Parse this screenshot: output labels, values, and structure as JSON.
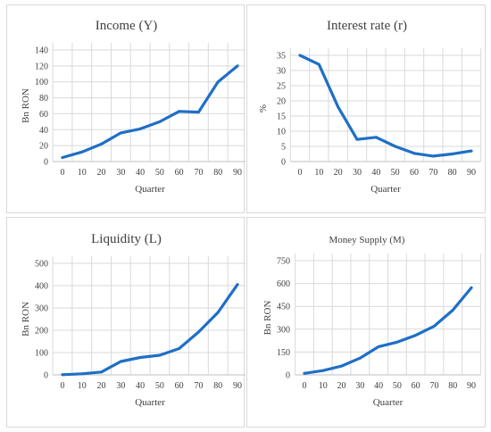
{
  "chart_data": [
    {
      "type": "line",
      "title": "Income (Y)",
      "xlabel": "Quarter",
      "ylabel": "Bn RON",
      "x": [
        0,
        10,
        20,
        30,
        40,
        50,
        60,
        70,
        80,
        90
      ],
      "y": [
        5,
        12,
        22,
        36,
        41,
        50,
        63,
        62,
        100,
        120
      ],
      "xticks": [
        0,
        10,
        20,
        30,
        40,
        50,
        60,
        70,
        80,
        90
      ],
      "yticks": [
        0,
        20,
        40,
        60,
        80,
        100,
        120,
        140
      ],
      "ylim": [
        0,
        140
      ],
      "grid": true,
      "color": "#1f6fc5"
    },
    {
      "type": "line",
      "title": "Interest rate (r)",
      "xlabel": "Quarter",
      "ylabel": "%",
      "x": [
        0,
        10,
        20,
        30,
        40,
        50,
        60,
        70,
        80,
        90
      ],
      "y": [
        35,
        32,
        18,
        7.3,
        8,
        5,
        2.7,
        1.8,
        2.5,
        3.5
      ],
      "xticks": [
        0,
        10,
        20,
        30,
        40,
        50,
        60,
        70,
        80,
        90
      ],
      "yticks": [
        0,
        5,
        10,
        15,
        20,
        25,
        30,
        35
      ],
      "ylim": [
        0,
        35
      ],
      "grid": true,
      "color": "#1f6fc5"
    },
    {
      "type": "line",
      "title": "Liquidity (L)",
      "xlabel": "Quarter",
      "ylabel": "Bn RON",
      "x": [
        0,
        10,
        20,
        30,
        40,
        50,
        60,
        70,
        80,
        90
      ],
      "y": [
        1,
        5,
        13,
        60,
        78,
        88,
        118,
        192,
        280,
        405
      ],
      "xticks": [
        0,
        10,
        20,
        30,
        40,
        50,
        60,
        70,
        80,
        90
      ],
      "yticks": [
        0,
        100,
        200,
        300,
        400,
        500
      ],
      "ylim": [
        0,
        500
      ],
      "grid": true,
      "color": "#1f6fc5"
    },
    {
      "type": "line",
      "title": "Money Supply (M)",
      "xlabel": "Quarter",
      "ylabel": "Bn RON",
      "x": [
        0,
        10,
        20,
        30,
        40,
        50,
        60,
        70,
        80,
        90
      ],
      "y": [
        10,
        28,
        58,
        110,
        185,
        215,
        260,
        320,
        425,
        572
      ],
      "xticks": [
        0,
        10,
        20,
        30,
        40,
        50,
        60,
        70,
        80,
        90
      ],
      "yticks": [
        0,
        150,
        300,
        450,
        600,
        750
      ],
      "ylim": [
        0,
        750
      ],
      "grid": true,
      "color": "#1f6fc5"
    }
  ]
}
